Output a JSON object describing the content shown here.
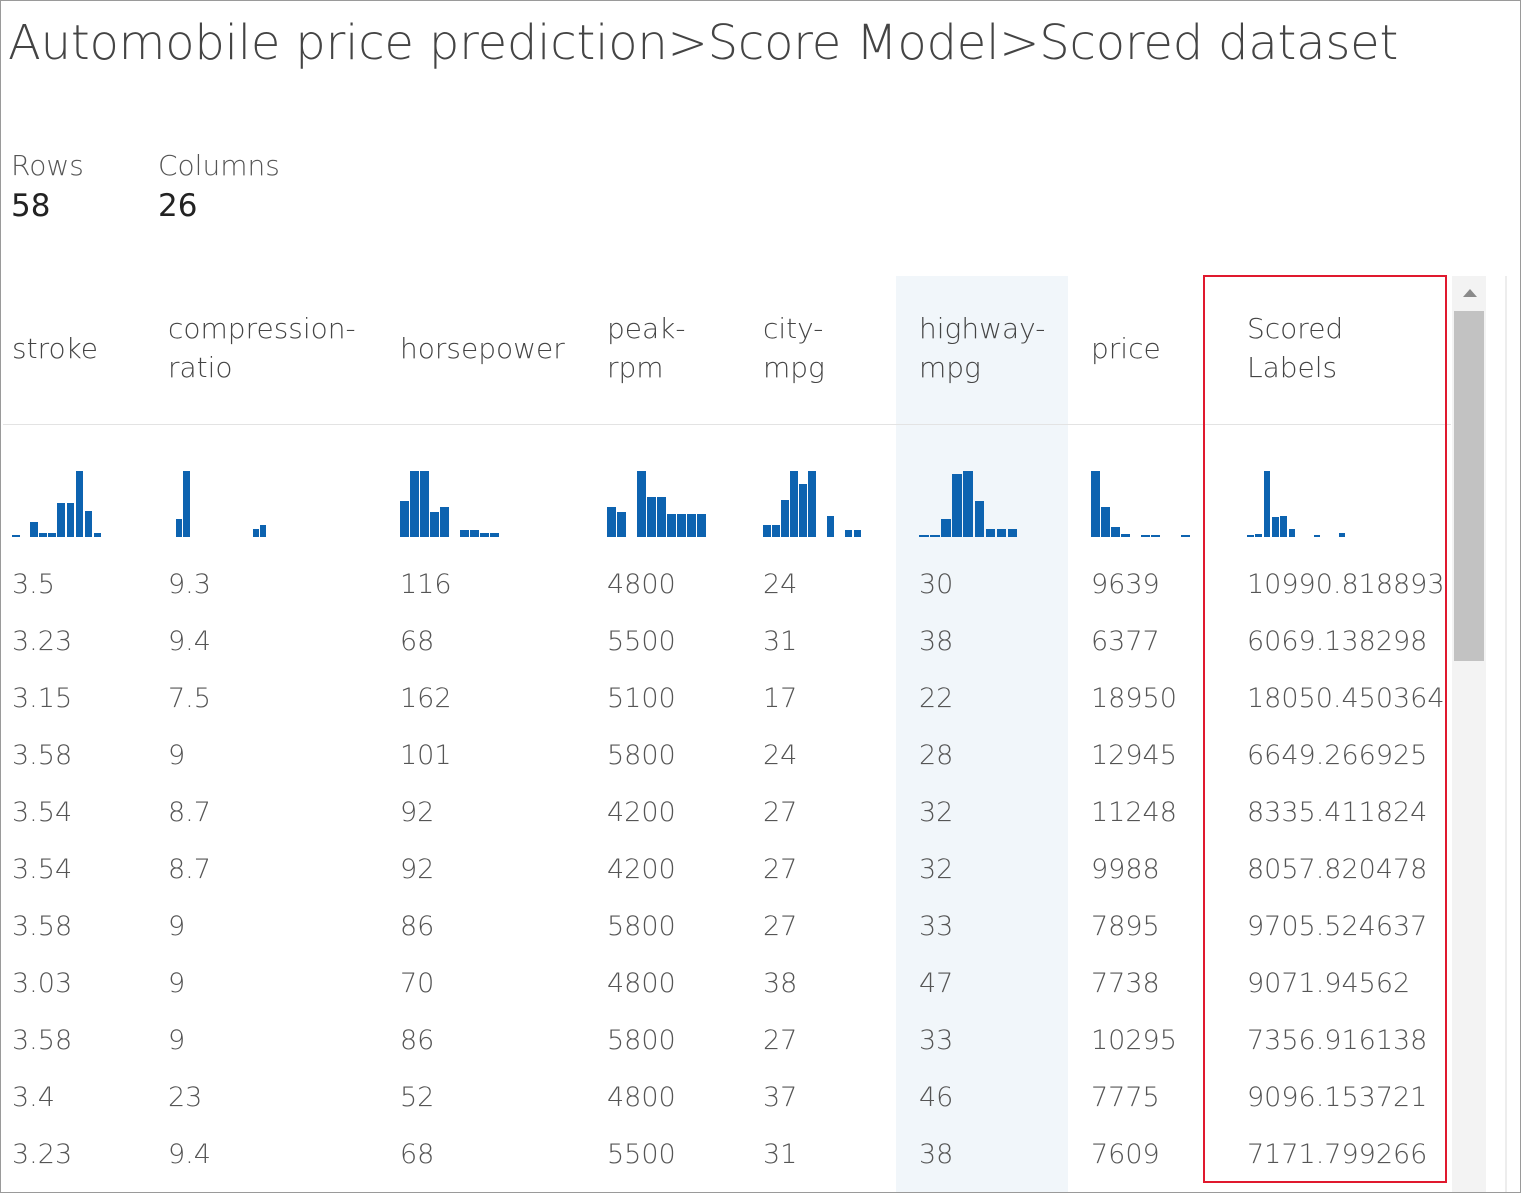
{
  "title": "Automobile price prediction>Score Model>Scored dataset",
  "stats": {
    "rows_label": "Rows",
    "rows_value": "58",
    "columns_label": "Columns",
    "columns_value": "26"
  },
  "columns": [
    {
      "id": "stroke",
      "header": [
        "stroke"
      ],
      "hist": [
        3,
        0,
        23,
        6,
        6,
        52,
        52,
        100,
        40,
        6,
        0
      ]
    },
    {
      "id": "compression-ratio",
      "header": [
        "compression-",
        "ratio"
      ],
      "hist": [
        0,
        28,
        100,
        0,
        0,
        0,
        0,
        0,
        0,
        0,
        0,
        12,
        18
      ]
    },
    {
      "id": "horsepower",
      "header": [
        "horsepower"
      ],
      "hist": [
        55,
        100,
        100,
        38,
        45,
        0,
        10,
        10,
        6,
        6
      ]
    },
    {
      "id": "peak-rpm",
      "header": [
        "peak-",
        "rpm"
      ],
      "hist": [
        45,
        38,
        0,
        100,
        60,
        60,
        35,
        35,
        35,
        35
      ]
    },
    {
      "id": "city-mpg",
      "header": [
        "city-",
        "mpg"
      ],
      "hist": [
        18,
        18,
        56,
        100,
        80,
        100,
        0,
        32,
        0,
        10,
        10
      ]
    },
    {
      "id": "highway-mpg",
      "header": [
        "highway-",
        "mpg"
      ],
      "hist": [
        3,
        3,
        28,
        95,
        100,
        55,
        12,
        12,
        12
      ]
    },
    {
      "id": "price",
      "header": [
        "price"
      ],
      "hist": [
        100,
        45,
        15,
        5,
        0,
        3,
        3,
        0,
        0,
        3
      ]
    },
    {
      "id": "scored-labels",
      "header": [
        "Scored",
        "Labels"
      ],
      "hist": [
        3,
        5,
        100,
        30,
        32,
        12,
        0,
        0,
        3,
        0,
        0,
        6
      ]
    }
  ],
  "rows": [
    [
      "3.5",
      "9.3",
      "116",
      "4800",
      "24",
      "30",
      "9639",
      "10990.818893"
    ],
    [
      "3.23",
      "9.4",
      "68",
      "5500",
      "31",
      "38",
      "6377",
      "6069.138298"
    ],
    [
      "3.15",
      "7.5",
      "162",
      "5100",
      "17",
      "22",
      "18950",
      "18050.450364"
    ],
    [
      "3.58",
      "9",
      "101",
      "5800",
      "24",
      "28",
      "12945",
      "6649.266925"
    ],
    [
      "3.54",
      "8.7",
      "92",
      "4200",
      "27",
      "32",
      "11248",
      "8335.411824"
    ],
    [
      "3.54",
      "8.7",
      "92",
      "4200",
      "27",
      "32",
      "9988",
      "8057.820478"
    ],
    [
      "3.58",
      "9",
      "86",
      "5800",
      "27",
      "33",
      "7895",
      "9705.524637"
    ],
    [
      "3.03",
      "9",
      "70",
      "4800",
      "38",
      "47",
      "7738",
      "9071.94562"
    ],
    [
      "3.58",
      "9",
      "86",
      "5800",
      "27",
      "33",
      "10295",
      "7356.916138"
    ],
    [
      "3.4",
      "23",
      "52",
      "4800",
      "37",
      "46",
      "7775",
      "9096.153721"
    ],
    [
      "3.23",
      "9.4",
      "68",
      "5500",
      "31",
      "38",
      "7609",
      "7171.799266"
    ]
  ],
  "colors": {
    "histogram_bar": "#0d63b0",
    "selected_column_bg": "#f1f6fa",
    "highlight_border": "#e0192e"
  },
  "selected_column": "highway-mpg",
  "highlighted_column": "scored-labels"
}
